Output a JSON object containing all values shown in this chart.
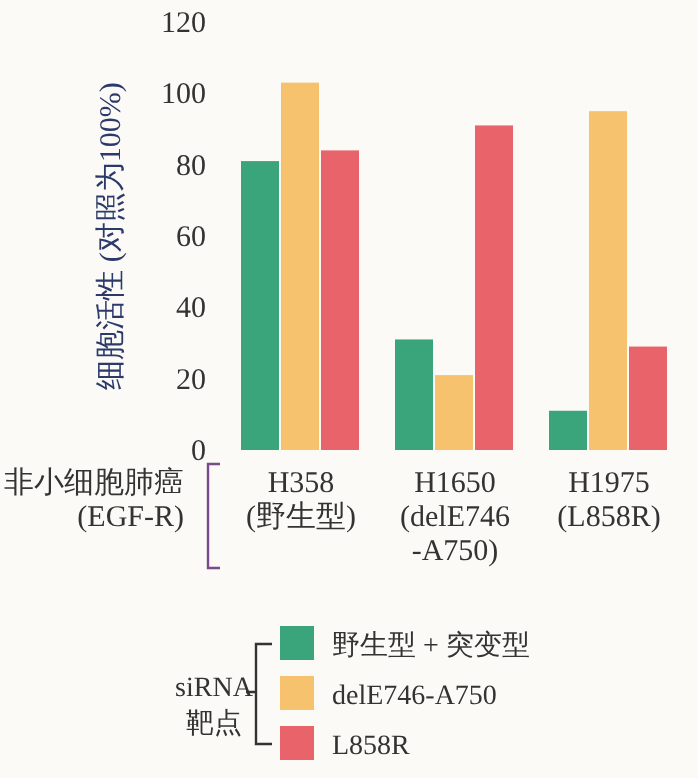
{
  "chart_data": {
    "type": "bar",
    "ylabel": "细胞活性 (对照为100%)",
    "xlabel": "非小细胞肺癌\n(EGF-R)",
    "legend_title": "siRNA\n靶点",
    "categories": [
      "H358\n(野生型)",
      "H1650\n(delE746\n-A750)",
      "H1975\n(L858R)"
    ],
    "series": [
      {
        "name": "野生型 + 突变型",
        "color": "#3aa57a",
        "values": [
          81,
          31,
          11
        ]
      },
      {
        "name": "delE746-A750",
        "color": "#f7c26e",
        "values": [
          103,
          21,
          95
        ]
      },
      {
        "name": "L858R",
        "color": "#e8636a",
        "values": [
          84,
          91,
          29
        ]
      }
    ],
    "ylim": [
      0,
      120
    ],
    "yticks": [
      0,
      20,
      40,
      60,
      80,
      100,
      120
    ],
    "grid": false,
    "legend": "bottom"
  }
}
